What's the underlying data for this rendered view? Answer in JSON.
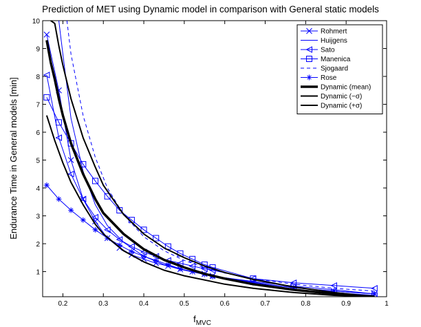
{
  "chart_data": {
    "type": "line",
    "title": "Prediction of MET using Dynamic model in comparison with General static models",
    "xlabel_main": "f",
    "xlabel_sub": "MVC",
    "ylabel": "Endurance Time in General models [min]",
    "xlim": [
      0.15,
      1
    ],
    "ylim": [
      0.1,
      10
    ],
    "x_ticks": [
      "0.2",
      "0.3",
      "0.4",
      "0.5",
      "0.6",
      "0.7",
      "0.8",
      "0.9",
      "1"
    ],
    "y_ticks": [
      "1",
      "2",
      "3",
      "4",
      "5",
      "6",
      "7",
      "8",
      "9",
      "10"
    ],
    "grid": false,
    "legend_position": "top-right",
    "series": [
      {
        "name": "Rohmert",
        "color": "#0000ff",
        "style": "solid",
        "width": 1,
        "marker": "x",
        "x": [
          0.16,
          0.19,
          0.22,
          0.25,
          0.28,
          0.31,
          0.34,
          0.37,
          0.4,
          0.43,
          0.46,
          0.49,
          0.52,
          0.55,
          0.57,
          0.67,
          0.77,
          0.87,
          0.97
        ],
        "y": [
          9.5,
          7.5,
          5.0,
          3.6,
          2.8,
          2.2,
          1.85,
          1.6,
          1.45,
          1.3,
          1.2,
          1.08,
          1.0,
          0.92,
          0.85,
          0.62,
          0.42,
          0.3,
          0.2
        ]
      },
      {
        "name": "Huijgens",
        "color": "#0000ff",
        "style": "solid",
        "width": 1,
        "marker": "none",
        "x": [
          0.19,
          0.2,
          0.22,
          0.25,
          0.28,
          0.31,
          0.35,
          0.4,
          0.45,
          0.5,
          0.55,
          0.6,
          0.67,
          0.77,
          0.87,
          0.97
        ],
        "y": [
          10,
          8.8,
          6.5,
          4.6,
          3.4,
          2.65,
          2.05,
          1.55,
          1.25,
          1.05,
          0.9,
          0.78,
          0.65,
          0.48,
          0.35,
          0.2
        ]
      },
      {
        "name": "Sato",
        "color": "#0000ff",
        "style": "solid",
        "width": 1,
        "marker": "triangle-left",
        "x": [
          0.16,
          0.19,
          0.22,
          0.25,
          0.28,
          0.31,
          0.34,
          0.37,
          0.4,
          0.43,
          0.46,
          0.49,
          0.52,
          0.55,
          0.57,
          0.67,
          0.77,
          0.87,
          0.97
        ],
        "y": [
          8.05,
          5.8,
          4.5,
          3.6,
          2.95,
          2.5,
          2.15,
          1.9,
          1.7,
          1.55,
          1.4,
          1.3,
          1.2,
          1.1,
          1.05,
          0.75,
          0.6,
          0.5,
          0.4
        ]
      },
      {
        "name": "Manenica",
        "color": "#0000ff",
        "style": "solid",
        "width": 1,
        "marker": "square",
        "x": [
          0.16,
          0.19,
          0.22,
          0.25,
          0.28,
          0.31,
          0.34,
          0.37,
          0.4,
          0.43,
          0.46,
          0.49,
          0.52,
          0.55,
          0.57,
          0.67,
          0.77,
          0.87,
          0.97
        ],
        "y": [
          7.25,
          6.35,
          5.6,
          4.85,
          4.25,
          3.7,
          3.2,
          2.85,
          2.5,
          2.2,
          1.9,
          1.65,
          1.45,
          1.25,
          1.15,
          0.75,
          0.45,
          0.25,
          0.15
        ]
      },
      {
        "name": "Sjogaard",
        "color": "#0000ff",
        "style": "dashed",
        "width": 1,
        "marker": "none",
        "x": [
          0.21,
          0.22,
          0.25,
          0.28,
          0.31,
          0.35,
          0.4,
          0.45,
          0.5,
          0.55,
          0.6,
          0.67,
          0.77,
          0.87,
          0.97
        ],
        "y": [
          10,
          8.8,
          6.6,
          5.1,
          4.0,
          3.05,
          2.25,
          1.75,
          1.4,
          1.15,
          0.95,
          0.75,
          0.55,
          0.4,
          0.3
        ]
      },
      {
        "name": "Rose",
        "color": "#0000ff",
        "style": "solid",
        "width": 1,
        "marker": "star",
        "x": [
          0.16,
          0.19,
          0.22,
          0.25,
          0.28,
          0.31,
          0.34,
          0.37,
          0.4,
          0.43,
          0.46,
          0.49,
          0.52,
          0.55,
          0.57,
          0.67,
          0.77,
          0.87,
          0.97
        ],
        "y": [
          4.1,
          3.6,
          3.2,
          2.85,
          2.5,
          2.2,
          1.95,
          1.72,
          1.55,
          1.4,
          1.25,
          1.1,
          1.0,
          0.9,
          0.82,
          0.6,
          0.42,
          0.3,
          0.2
        ]
      },
      {
        "name": "Dynamic (mean)",
        "color": "#000000",
        "style": "solid",
        "width": 3.5,
        "marker": "none",
        "x": [
          0.16,
          0.17,
          0.18,
          0.19,
          0.2,
          0.22,
          0.25,
          0.28,
          0.3,
          0.35,
          0.4,
          0.45,
          0.5,
          0.55,
          0.6,
          0.67,
          0.77,
          0.87,
          0.97
        ],
        "y": [
          9.3,
          8.5,
          7.9,
          7.2,
          6.6,
          5.6,
          4.5,
          3.6,
          3.1,
          2.35,
          1.8,
          1.42,
          1.15,
          0.92,
          0.75,
          0.55,
          0.35,
          0.2,
          0.1
        ]
      },
      {
        "name": "Dynamic (−σ)",
        "color": "#000000",
        "style": "solid",
        "width": 2,
        "marker": "none",
        "x": [
          0.16,
          0.18,
          0.2,
          0.22,
          0.25,
          0.28,
          0.3,
          0.35,
          0.4,
          0.45,
          0.5,
          0.55,
          0.6,
          0.67,
          0.77,
          0.87,
          0.97
        ],
        "y": [
          6.6,
          5.7,
          4.9,
          4.2,
          3.4,
          2.7,
          2.35,
          1.75,
          1.35,
          1.05,
          0.85,
          0.7,
          0.55,
          0.4,
          0.25,
          0.15,
          0.1
        ]
      },
      {
        "name": "Dynamic (+σ)",
        "color": "#000000",
        "style": "solid",
        "width": 2,
        "marker": "none",
        "x": [
          0.17,
          0.18,
          0.19,
          0.2,
          0.22,
          0.25,
          0.28,
          0.3,
          0.35,
          0.4,
          0.45,
          0.5,
          0.55,
          0.6,
          0.67,
          0.77,
          0.87,
          0.97
        ],
        "y": [
          10,
          9.9,
          9.1,
          8.4,
          7.2,
          5.8,
          4.75,
          4.1,
          3.05,
          2.35,
          1.85,
          1.5,
          1.2,
          0.97,
          0.72,
          0.45,
          0.25,
          0.1
        ]
      }
    ]
  }
}
